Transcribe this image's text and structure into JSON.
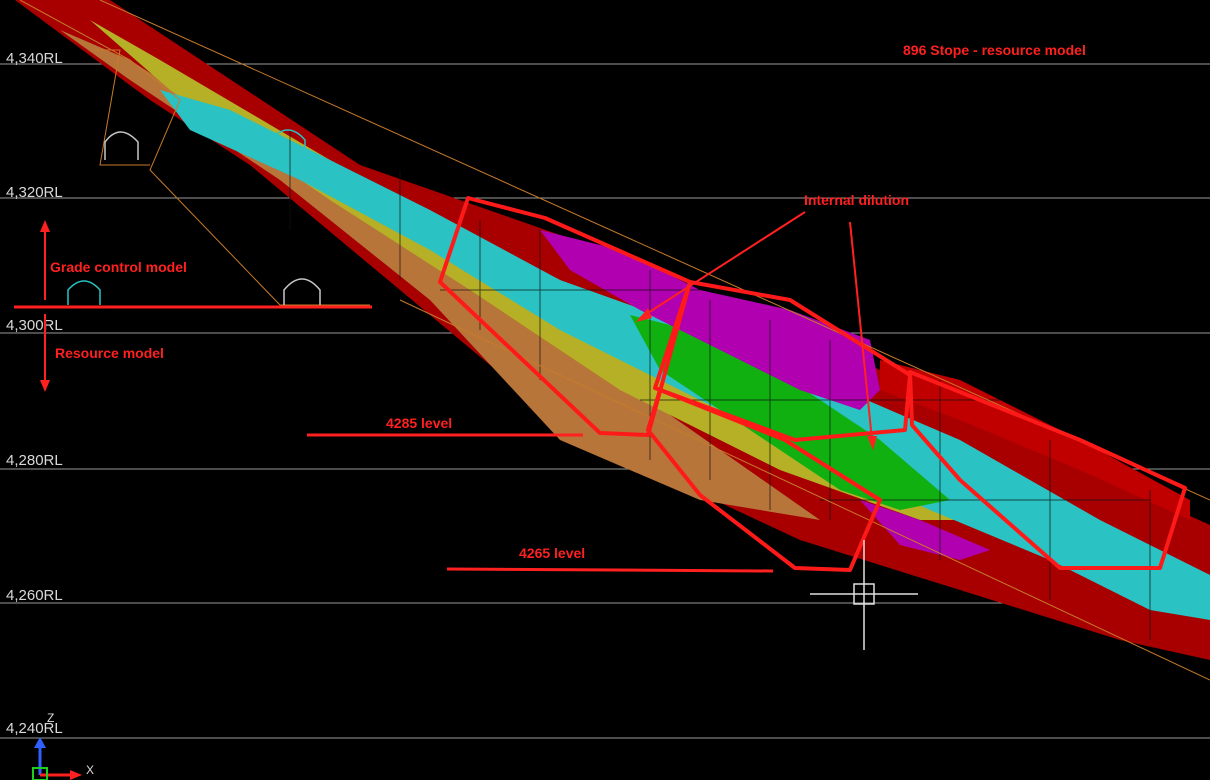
{
  "title": "896 Stope - resource model",
  "rl_labels": [
    "4,340RL",
    "4,320RL",
    "4,300RL",
    "4,280RL",
    "4,260RL",
    "4,240RL"
  ],
  "annotations": {
    "grade_control": "Grade control model",
    "resource": "Resource model",
    "internal_dilution": "Internal dilution",
    "level_4285": "4285 level",
    "level_4265": "4265 level"
  },
  "axis": {
    "z": "Z",
    "x": "X"
  },
  "colors": {
    "background": "#000000",
    "annotation": "#ff2020",
    "grid": "#9a9a9a",
    "dark_red": "#a80000",
    "orange_brown": "#b8753a",
    "olive": "#b5b025",
    "cyan": "#2ac2c2",
    "green": "#10b010",
    "magenta": "#b000b0",
    "outline": "#ff1a1a"
  }
}
